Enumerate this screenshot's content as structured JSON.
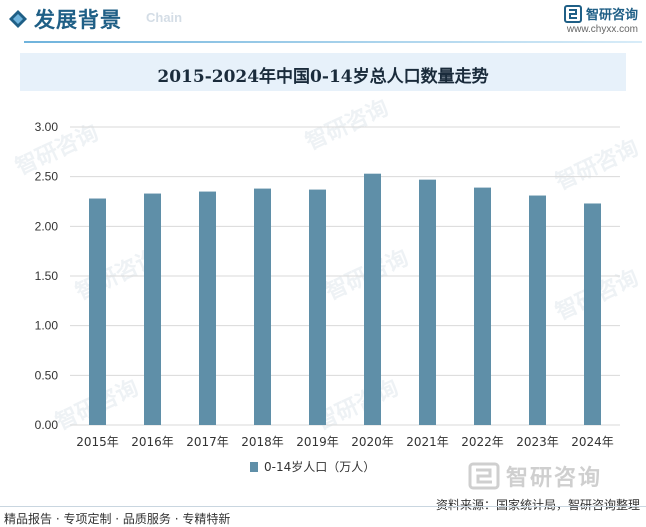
{
  "header": {
    "section_title": "发展背景",
    "section_subtitle": "Chain",
    "brand_name": "智研咨询",
    "brand_url": "www.chyxx.com"
  },
  "watermark": {
    "name": "智研咨询"
  },
  "footer": {
    "left_text": "精品报告 · 专项定制 · 品质服务 · 专精特新",
    "source_text": "资料来源：国家统计局，智研咨询整理"
  },
  "colors": {
    "bar": "#5f8fa8",
    "accent": "#1f5f86",
    "title_bar": "#e7f1fa",
    "grid": "#d9d9d9"
  },
  "chart_data": {
    "type": "bar",
    "title": "2015-2024年中国0-14岁总人口数量走势",
    "categories": [
      "2015年",
      "2016年",
      "2017年",
      "2018年",
      "2019年",
      "2020年",
      "2021年",
      "2022年",
      "2023年",
      "2024年"
    ],
    "series": [
      {
        "name": "0-14岁人口（万人）",
        "values": [
          2.28,
          2.33,
          2.35,
          2.38,
          2.37,
          2.53,
          2.47,
          2.39,
          2.31,
          2.23
        ]
      }
    ],
    "yticks": [
      "0.00",
      "0.50",
      "1.00",
      "1.50",
      "2.00",
      "2.50",
      "3.00"
    ],
    "ylim": [
      0,
      3
    ],
    "grid": true,
    "legend_position": "bottom"
  }
}
